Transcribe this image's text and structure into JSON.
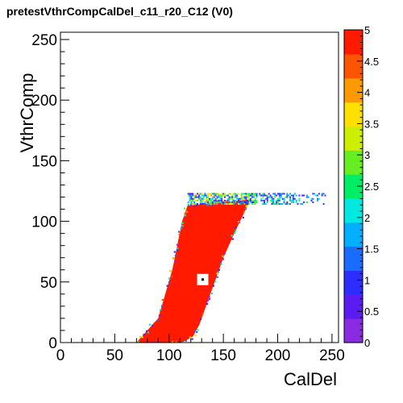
{
  "title": "pretestVthrCompCalDel_c11_r20_C12 (V0)",
  "chart_data": {
    "type": "heatmap",
    "title": "pretestVthrCompCalDel_c11_r20_C12 (V0)",
    "xlabel": "CalDel",
    "ylabel": "VthrComp",
    "xlim": [
      0,
      256
    ],
    "ylim": [
      0,
      256
    ],
    "x_ticks": [
      0,
      50,
      100,
      150,
      200,
      250
    ],
    "y_ticks": [
      0,
      50,
      100,
      150,
      200,
      250
    ],
    "z_range": [
      0,
      5
    ],
    "z_ticks": [
      0,
      0.5,
      1,
      1.5,
      2,
      2.5,
      3,
      3.5,
      4,
      4.5,
      5
    ],
    "z_tick_labels": [
      "0",
      "0.5",
      "1",
      "1.5",
      "2",
      "2.5",
      "3",
      "3.5",
      "4",
      "4.5",
      "5"
    ],
    "region_max": {
      "value": 5,
      "polygon": [
        [
          70,
          0
        ],
        [
          90,
          20
        ],
        [
          103,
          60
        ],
        [
          112,
          100
        ],
        [
          117,
          113
        ],
        [
          175,
          118
        ],
        [
          168,
          105
        ],
        [
          160,
          90
        ],
        [
          150,
          70
        ],
        [
          138,
          40
        ],
        [
          128,
          15
        ],
        [
          122,
          5
        ],
        [
          112,
          0
        ]
      ]
    },
    "plateau": {
      "x_range": [
        117,
        245
      ],
      "y_range": [
        115,
        124
      ],
      "value_range": [
        0.5,
        4.5
      ]
    },
    "hole": {
      "x": 131,
      "y": 52,
      "value": 0,
      "marker_value": 5
    },
    "colormap": [
      "#8a2be2",
      "#5a1cf0",
      "#2d2dff",
      "#1a6bff",
      "#00b0ff",
      "#00e8e0",
      "#00ee66",
      "#66ee22",
      "#ccee00",
      "#ffe000",
      "#ff9900",
      "#ff5500",
      "#ff1a00"
    ]
  }
}
